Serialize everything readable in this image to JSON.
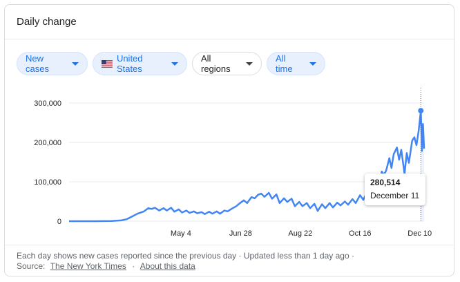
{
  "card": {
    "title": "Daily change"
  },
  "filters": {
    "metric": "New cases",
    "location": "United States",
    "regions": "All regions",
    "period": "All time"
  },
  "colors": {
    "line": "#4285f4",
    "fill": "#e8f0fe",
    "accent": "#1a73e8"
  },
  "icons": {
    "flag": "us-flag-icon",
    "dropdown": "caret-down-icon"
  },
  "chart_data": {
    "type": "line",
    "ylim": [
      0,
      300000
    ],
    "y_ticks": [
      "0",
      "100,000",
      "200,000",
      "300,000"
    ],
    "x_ticks": [
      "May 4",
      "Jun 28",
      "Aug 22",
      "Oct 16",
      "Dec 10"
    ],
    "x_tick_dates": [
      "2020-05-04",
      "2020-06-28",
      "2020-08-22",
      "2020-10-16",
      "2020-12-10"
    ],
    "x_range": [
      "2020-01-22",
      "2020-12-14"
    ],
    "grid": true,
    "series": [
      {
        "x": [
          "2020-01-22",
          "2020-02-15",
          "2020-03-01",
          "2020-03-10",
          "2020-03-15",
          "2020-03-20",
          "2020-03-25",
          "2020-03-31",
          "2020-04-04",
          "2020-04-07",
          "2020-04-10",
          "2020-04-14",
          "2020-04-18",
          "2020-04-21",
          "2020-04-25",
          "2020-04-28",
          "2020-05-02",
          "2020-05-05",
          "2020-05-09",
          "2020-05-12",
          "2020-05-16",
          "2020-05-19",
          "2020-05-23",
          "2020-05-26",
          "2020-05-30",
          "2020-06-02",
          "2020-06-06",
          "2020-06-09",
          "2020-06-13",
          "2020-06-16",
          "2020-06-20",
          "2020-06-24",
          "2020-06-27",
          "2020-07-01",
          "2020-07-04",
          "2020-07-08",
          "2020-07-11",
          "2020-07-14",
          "2020-07-17",
          "2020-07-20",
          "2020-07-24",
          "2020-07-27",
          "2020-07-31",
          "2020-08-03",
          "2020-08-07",
          "2020-08-10",
          "2020-08-14",
          "2020-08-17",
          "2020-08-21",
          "2020-08-24",
          "2020-08-28",
          "2020-08-31",
          "2020-09-04",
          "2020-09-07",
          "2020-09-11",
          "2020-09-14",
          "2020-09-18",
          "2020-09-21",
          "2020-09-25",
          "2020-09-28",
          "2020-10-02",
          "2020-10-05",
          "2020-10-09",
          "2020-10-12",
          "2020-10-16",
          "2020-10-19",
          "2020-10-23",
          "2020-10-26",
          "2020-10-30",
          "2020-11-02",
          "2020-11-05",
          "2020-11-07",
          "2020-11-09",
          "2020-11-12",
          "2020-11-14",
          "2020-11-16",
          "2020-11-19",
          "2020-11-21",
          "2020-11-23",
          "2020-11-26",
          "2020-11-28",
          "2020-11-30",
          "2020-12-03",
          "2020-12-05",
          "2020-12-07",
          "2020-12-09",
          "2020-12-11",
          "2020-12-12",
          "2020-12-13",
          "2020-12-14"
        ],
        "y": [
          0,
          0,
          300,
          2000,
          5000,
          12000,
          19000,
          25000,
          33000,
          31000,
          34000,
          27000,
          33000,
          27000,
          34000,
          24000,
          30000,
          22000,
          27000,
          21000,
          25000,
          20000,
          23000,
          18000,
          24000,
          19000,
          25000,
          19000,
          27000,
          25000,
          32000,
          38000,
          45000,
          53000,
          46000,
          61000,
          58000,
          67000,
          70000,
          62000,
          72000,
          57000,
          68000,
          46000,
          58000,
          49000,
          57000,
          38000,
          49000,
          38000,
          46000,
          33000,
          44000,
          26000,
          43000,
          33000,
          46000,
          35000,
          47000,
          40000,
          50000,
          42000,
          56000,
          46000,
          66000,
          54000,
          77000,
          62000,
          99000,
          82000,
          126000,
          118000,
          128000,
          160000,
          135000,
          170000,
          187000,
          156000,
          181000,
          120000,
          173000,
          148000,
          204000,
          213000,
          193000,
          229000,
          280514,
          178000,
          247000,
          184000
        ]
      }
    ],
    "highlight": {
      "value": "280,514",
      "date": "December 11"
    }
  },
  "footer": {
    "note": "Each day shows new cases reported since the previous day · Updated less than 1 day ago  ·",
    "source_label": "Source:",
    "source_link": "The New York Times",
    "dot": "·",
    "about_link": "About this data"
  }
}
